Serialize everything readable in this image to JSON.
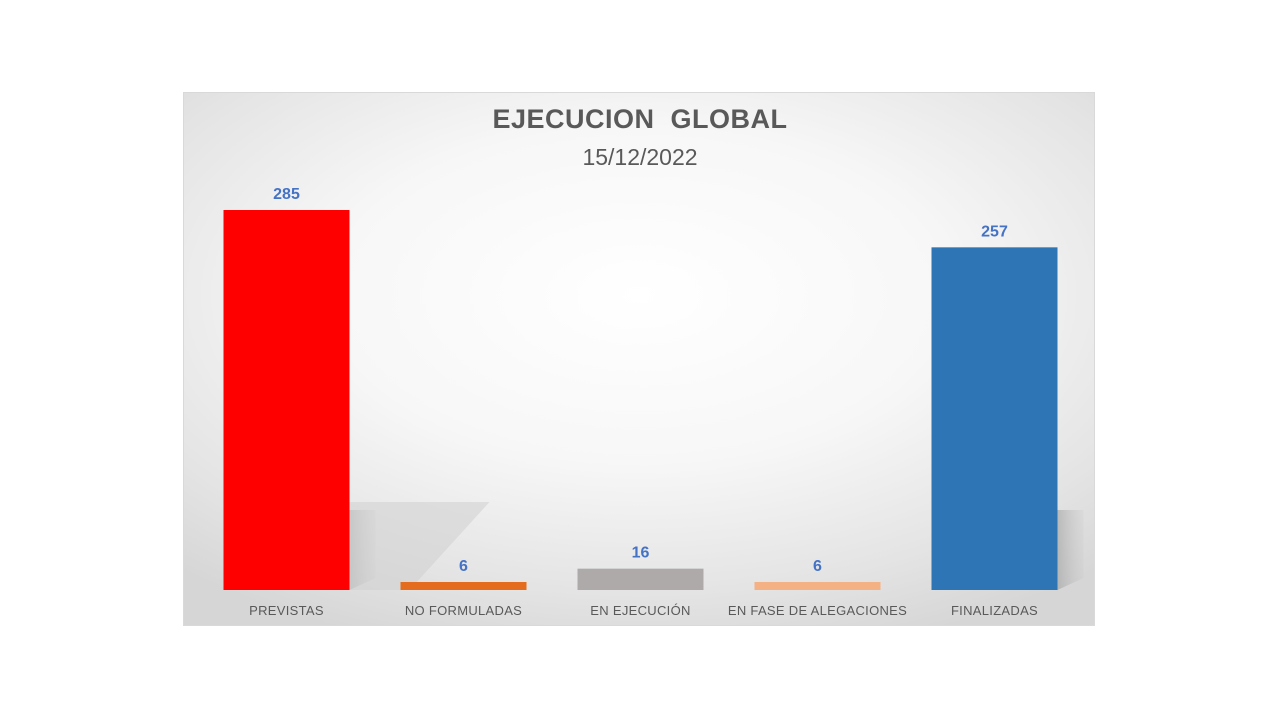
{
  "chart_data": {
    "type": "bar",
    "title": "EJECUCION  GLOBAL",
    "subtitle": "15/12/2022",
    "categories": [
      "PREVISTAS",
      "NO FORMULADAS",
      "EN EJECUCIÓN",
      "EN FASE DE ALEGACIONES",
      "FINALIZADAS"
    ],
    "values": [
      285,
      6,
      16,
      6,
      257
    ],
    "bar_colors": [
      "#ff0000",
      "#e46c1e",
      "#aeaaaa",
      "#f4b183",
      "#2e75b6"
    ],
    "data_label_color": "#4472c4",
    "ylim": [
      0,
      285
    ],
    "grid": false,
    "legend": "none"
  }
}
